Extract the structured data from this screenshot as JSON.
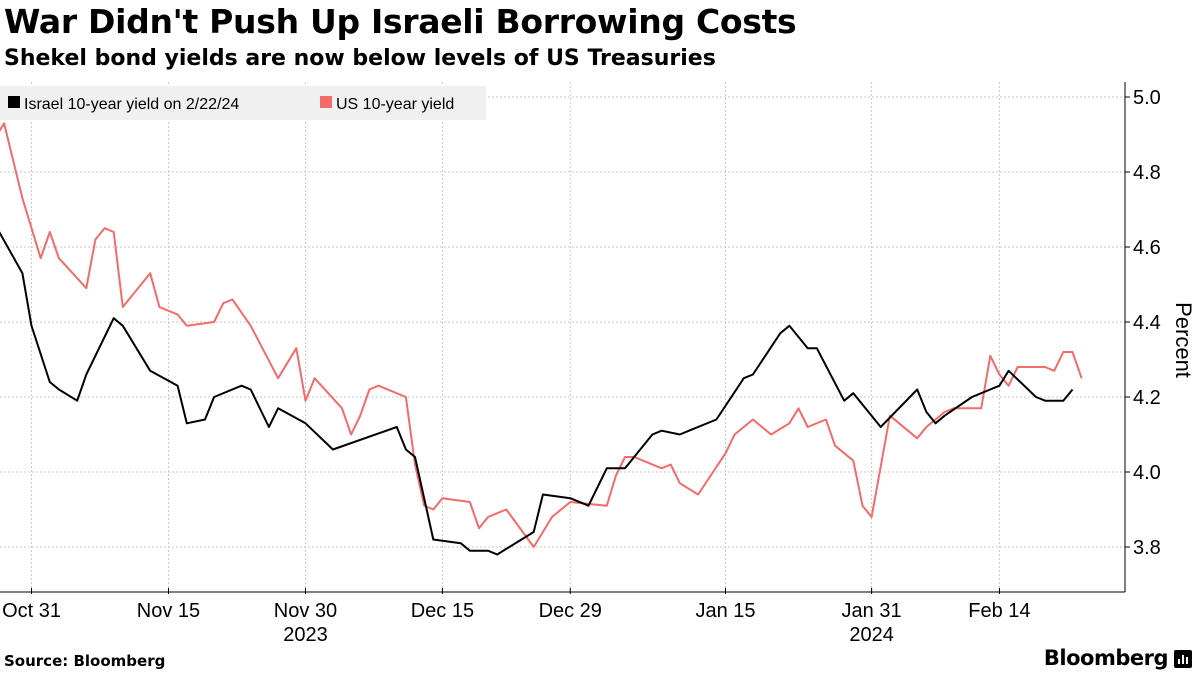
{
  "header": {
    "title": "War Didn't Push Up Israeli Borrowing Costs",
    "subtitle": "Shekel bond yields are now below levels of US Treasuries"
  },
  "footer": {
    "source": "Source: Bloomberg",
    "brand": "Bloomberg"
  },
  "colors": {
    "israel": "#000000",
    "us": "#f36b6b",
    "grid": "#c8c8c8",
    "legend_bg": "#f0f0f0"
  },
  "chart_data": {
    "type": "line",
    "title": "War Didn't Push Up Israeli Borrowing Costs",
    "subtitle": "Shekel bond yields are now below levels of US Treasuries",
    "xlabel": "",
    "ylabel": "Percent",
    "y_axis_side": "right",
    "ylim": [
      3.7,
      5.05
    ],
    "yticks": [
      3.8,
      4.0,
      4.2,
      4.4,
      4.6,
      4.8,
      5.0
    ],
    "ytick_labels": [
      "3.8",
      "4.0",
      "4.2",
      "4.4",
      "4.6",
      "4.8",
      "5.0"
    ],
    "x_start": "2023-10-27",
    "x_end": "2024-02-26",
    "xticks": [
      {
        "date": "2023-10-31",
        "label": "Oct 31"
      },
      {
        "date": "2023-11-15",
        "label": "Nov 15"
      },
      {
        "date": "2023-11-30",
        "label": "Nov 30"
      },
      {
        "date": "2023-12-15",
        "label": "Dec 15"
      },
      {
        "date": "2023-12-29",
        "label": "Dec 29"
      },
      {
        "date": "2024-01-15",
        "label": "Jan 15"
      },
      {
        "date": "2024-01-31",
        "label": "Jan 31"
      },
      {
        "date": "2024-02-14",
        "label": "Feb 14"
      }
    ],
    "year_labels": [
      {
        "date": "2023-11-30",
        "label": "2023"
      },
      {
        "date": "2024-01-31",
        "label": "2024"
      }
    ],
    "grid": true,
    "legend_position": "top-left",
    "series": [
      {
        "name": "Israel 10-year yield  on 2/22/24",
        "color": "#000000",
        "points": [
          [
            "2023-10-27",
            4.66
          ],
          [
            "2023-10-30",
            4.53
          ],
          [
            "2023-10-31",
            4.39
          ],
          [
            "2023-11-02",
            4.24
          ],
          [
            "2023-11-03",
            4.22
          ],
          [
            "2023-11-05",
            4.19
          ],
          [
            "2023-11-06",
            4.26
          ],
          [
            "2023-11-09",
            4.41
          ],
          [
            "2023-11-10",
            4.39
          ],
          [
            "2023-11-13",
            4.27
          ],
          [
            "2023-11-16",
            4.23
          ],
          [
            "2023-11-17",
            4.13
          ],
          [
            "2023-11-19",
            4.14
          ],
          [
            "2023-11-20",
            4.2
          ],
          [
            "2023-11-23",
            4.23
          ],
          [
            "2023-11-24",
            4.22
          ],
          [
            "2023-11-26",
            4.12
          ],
          [
            "2023-11-27",
            4.17
          ],
          [
            "2023-11-30",
            4.13
          ],
          [
            "2023-12-03",
            4.06
          ],
          [
            "2023-12-10",
            4.12
          ],
          [
            "2023-12-11",
            4.06
          ],
          [
            "2023-12-12",
            4.04
          ],
          [
            "2023-12-14",
            3.82
          ],
          [
            "2023-12-17",
            3.81
          ],
          [
            "2023-12-18",
            3.79
          ],
          [
            "2023-12-20",
            3.79
          ],
          [
            "2023-12-21",
            3.78
          ],
          [
            "2023-12-25",
            3.84
          ],
          [
            "2023-12-26",
            3.94
          ],
          [
            "2023-12-29",
            3.93
          ],
          [
            "2023-12-31",
            3.91
          ],
          [
            "2024-01-02",
            4.01
          ],
          [
            "2024-01-04",
            4.01
          ],
          [
            "2024-01-07",
            4.1
          ],
          [
            "2024-01-08",
            4.11
          ],
          [
            "2024-01-10",
            4.1
          ],
          [
            "2024-01-11",
            4.11
          ],
          [
            "2024-01-14",
            4.14
          ],
          [
            "2024-01-17",
            4.25
          ],
          [
            "2024-01-18",
            4.26
          ],
          [
            "2024-01-21",
            4.37
          ],
          [
            "2024-01-22",
            4.39
          ],
          [
            "2024-01-24",
            4.33
          ],
          [
            "2024-01-25",
            4.33
          ],
          [
            "2024-01-28",
            4.19
          ],
          [
            "2024-01-29",
            4.21
          ],
          [
            "2024-01-31",
            4.15
          ],
          [
            "2024-02-01",
            4.12
          ],
          [
            "2024-02-05",
            4.22
          ],
          [
            "2024-02-06",
            4.16
          ],
          [
            "2024-02-07",
            4.13
          ],
          [
            "2024-02-08",
            4.15
          ],
          [
            "2024-02-11",
            4.2
          ],
          [
            "2024-02-14",
            4.23
          ],
          [
            "2024-02-15",
            4.27
          ],
          [
            "2024-02-18",
            4.2
          ],
          [
            "2024-02-19",
            4.19
          ],
          [
            "2024-02-21",
            4.19
          ],
          [
            "2024-02-22",
            4.22
          ]
        ]
      },
      {
        "name": "US 10-year yield",
        "color": "#f36b6b",
        "points": [
          [
            "2023-10-27",
            4.89
          ],
          [
            "2023-10-28",
            4.93
          ],
          [
            "2023-10-30",
            4.73
          ],
          [
            "2023-11-01",
            4.57
          ],
          [
            "2023-11-02",
            4.64
          ],
          [
            "2023-11-03",
            4.57
          ],
          [
            "2023-11-06",
            4.49
          ],
          [
            "2023-11-07",
            4.62
          ],
          [
            "2023-11-08",
            4.65
          ],
          [
            "2023-11-09",
            4.64
          ],
          [
            "2023-11-10",
            4.44
          ],
          [
            "2023-11-13",
            4.53
          ],
          [
            "2023-11-14",
            4.44
          ],
          [
            "2023-11-15",
            4.43
          ],
          [
            "2023-11-16",
            4.42
          ],
          [
            "2023-11-17",
            4.39
          ],
          [
            "2023-11-20",
            4.4
          ],
          [
            "2023-11-21",
            4.45
          ],
          [
            "2023-11-22",
            4.46
          ],
          [
            "2023-11-24",
            4.39
          ],
          [
            "2023-11-27",
            4.25
          ],
          [
            "2023-11-29",
            4.33
          ],
          [
            "2023-11-30",
            4.19
          ],
          [
            "2023-12-01",
            4.25
          ],
          [
            "2023-12-04",
            4.17
          ],
          [
            "2023-12-05",
            4.1
          ],
          [
            "2023-12-06",
            4.15
          ],
          [
            "2023-12-07",
            4.22
          ],
          [
            "2023-12-08",
            4.23
          ],
          [
            "2023-12-11",
            4.2
          ],
          [
            "2023-12-12",
            4.02
          ],
          [
            "2023-12-13",
            3.91
          ],
          [
            "2023-12-14",
            3.9
          ],
          [
            "2023-12-15",
            3.93
          ],
          [
            "2023-12-18",
            3.92
          ],
          [
            "2023-12-19",
            3.85
          ],
          [
            "2023-12-20",
            3.88
          ],
          [
            "2023-12-21",
            3.89
          ],
          [
            "2023-12-22",
            3.9
          ],
          [
            "2023-12-25",
            3.8
          ],
          [
            "2023-12-26",
            3.84
          ],
          [
            "2023-12-27",
            3.88
          ],
          [
            "2023-12-29",
            3.92
          ],
          [
            "2024-01-02",
            3.91
          ],
          [
            "2024-01-03",
            3.99
          ],
          [
            "2024-01-04",
            4.04
          ],
          [
            "2024-01-05",
            4.04
          ],
          [
            "2024-01-08",
            4.01
          ],
          [
            "2024-01-09",
            4.02
          ],
          [
            "2024-01-10",
            3.97
          ],
          [
            "2024-01-12",
            3.94
          ],
          [
            "2024-01-15",
            4.05
          ],
          [
            "2024-01-16",
            4.1
          ],
          [
            "2024-01-18",
            4.14
          ],
          [
            "2024-01-19",
            4.12
          ],
          [
            "2024-01-20",
            4.1
          ],
          [
            "2024-01-22",
            4.13
          ],
          [
            "2024-01-23",
            4.17
          ],
          [
            "2024-01-24",
            4.12
          ],
          [
            "2024-01-26",
            4.14
          ],
          [
            "2024-01-27",
            4.07
          ],
          [
            "2024-01-29",
            4.03
          ],
          [
            "2024-01-30",
            3.91
          ],
          [
            "2024-01-31",
            3.88
          ],
          [
            "2024-02-02",
            4.15
          ],
          [
            "2024-02-05",
            4.09
          ],
          [
            "2024-02-06",
            4.12
          ],
          [
            "2024-02-08",
            4.16
          ],
          [
            "2024-02-09",
            4.17
          ],
          [
            "2024-02-12",
            4.17
          ],
          [
            "2024-02-13",
            4.31
          ],
          [
            "2024-02-14",
            4.26
          ],
          [
            "2024-02-15",
            4.23
          ],
          [
            "2024-02-16",
            4.28
          ],
          [
            "2024-02-19",
            4.28
          ],
          [
            "2024-02-20",
            4.27
          ],
          [
            "2024-02-21",
            4.32
          ],
          [
            "2024-02-22",
            4.32
          ],
          [
            "2024-02-23",
            4.25
          ]
        ]
      }
    ]
  }
}
